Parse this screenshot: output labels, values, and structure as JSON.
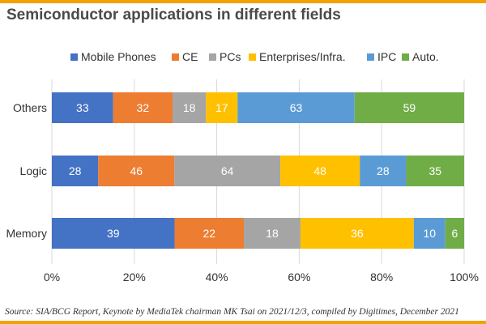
{
  "header": {
    "title": "Semiconductor applications in different fields"
  },
  "footer": {
    "source": "Source: SIA/BCG Report, Keynote by MediaTek chairman MK Tsai on 2021/12/3, compiled by Digitimes, December 2021"
  },
  "chart_data": {
    "type": "bar",
    "orientation": "horizontal",
    "stacking": "percent",
    "categories": [
      "Others",
      "Logic",
      "Memory"
    ],
    "series": [
      {
        "name": "Mobile Phones",
        "color": "#4472c4",
        "values": [
          33,
          28,
          39
        ]
      },
      {
        "name": "CE",
        "color": "#ed7d31",
        "values": [
          32,
          46,
          22
        ]
      },
      {
        "name": "PCs",
        "color": "#a5a5a5",
        "values": [
          18,
          64,
          18
        ]
      },
      {
        "name": "Enterprises/Infra.",
        "color": "#ffc000",
        "values": [
          17,
          48,
          36
        ]
      },
      {
        "name": "IPC",
        "color": "#5b9bd5",
        "values": [
          63,
          28,
          10
        ]
      },
      {
        "name": "Auto.",
        "color": "#70ad47",
        "values": [
          59,
          35,
          6
        ]
      }
    ],
    "xticks": [
      "0%",
      "20%",
      "40%",
      "60%",
      "80%",
      "100%"
    ],
    "xlim": [
      0,
      100
    ],
    "xgrid": true,
    "legend": "top",
    "label_color": "#ffffff"
  }
}
